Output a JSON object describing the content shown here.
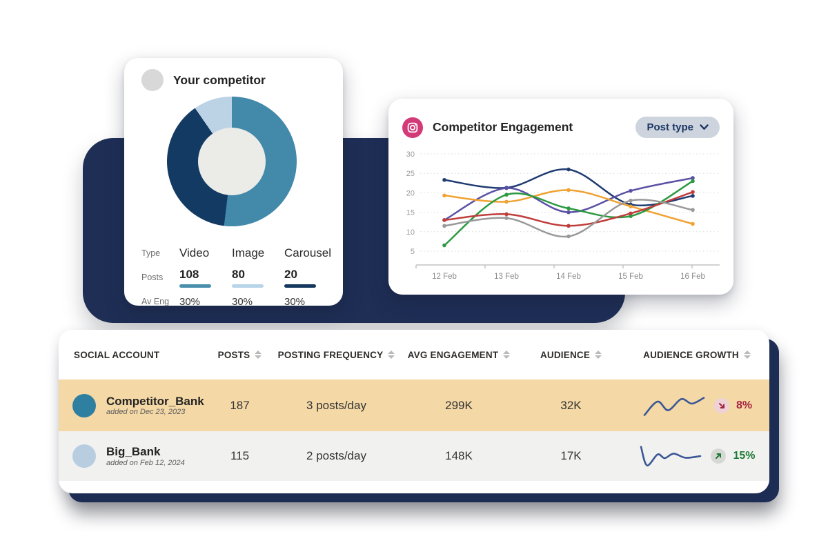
{
  "page": {
    "background": "#ffffff",
    "accent_navy": "#1e2e55"
  },
  "competitor_card": {
    "title": "Your competitor",
    "avatar_color": "#d8d8d8",
    "chart_data": {
      "type": "donut",
      "title": "Your competitor post types",
      "segments": [
        {
          "label": "Video",
          "value": 108,
          "color": "#4289aa"
        },
        {
          "label": "Image",
          "value": 80,
          "color": "#133a62"
        },
        {
          "label": "Carousel",
          "value": 20,
          "color": "#bcd3e6"
        }
      ],
      "hole_color": "#ebebe8"
    },
    "legend": {
      "row_labels": [
        "Type",
        "Posts",
        "Av Eng"
      ],
      "columns": [
        {
          "type": "Video",
          "posts": "108",
          "bar_color": "#4a90ad",
          "avg_eng": "30%"
        },
        {
          "type": "Image",
          "posts": "80",
          "bar_color": "#b8d4e8",
          "avg_eng": "30%"
        },
        {
          "type": "Carousel",
          "posts": "20",
          "bar_color": "#16385e",
          "avg_eng": "30%"
        }
      ]
    }
  },
  "engagement_card": {
    "title": "Competitor Engagement",
    "icon": "instagram-icon",
    "icon_color": "#d23b77",
    "filter_button": {
      "label": "Post type",
      "icon": "chevron-down-icon"
    },
    "chart_data": {
      "type": "line",
      "x_labels": [
        "12 Feb",
        "13 Feb",
        "14 Feb",
        "15 Feb",
        "16 Feb"
      ],
      "y_ticks": [
        5,
        10,
        15,
        20,
        25,
        30
      ],
      "ylim": [
        5,
        30
      ],
      "grid": "dotted-horizontal",
      "legend_position": "none",
      "series": [
        {
          "name": "navy",
          "color": "#1f3b70",
          "values": [
            23.3,
            21.3,
            26,
            17,
            19.2
          ]
        },
        {
          "name": "purple",
          "color": "#5a51a5",
          "values": [
            13,
            21.2,
            15,
            20.5,
            23.8
          ]
        },
        {
          "name": "orange",
          "color": "#f0a232",
          "values": [
            19.3,
            17.7,
            20.7,
            16.5,
            12
          ]
        },
        {
          "name": "green",
          "color": "#2c9a41",
          "values": [
            6.5,
            19.5,
            16,
            14,
            23
          ]
        },
        {
          "name": "red",
          "color": "#bf3d3a",
          "values": [
            13,
            14.5,
            11.5,
            14.7,
            20.2
          ]
        },
        {
          "name": "gray",
          "color": "#999999",
          "values": [
            11.5,
            13.5,
            8.8,
            18,
            15.6
          ]
        }
      ]
    }
  },
  "table": {
    "sparkline_color": "#3a5795",
    "columns": [
      {
        "label": "SOCIAL ACCOUNT",
        "sortable": false
      },
      {
        "label": "POSTS",
        "sortable": true
      },
      {
        "label": "POSTING FREQUENCY",
        "sortable": true
      },
      {
        "label": "AVG ENGAGEMENT",
        "sortable": true
      },
      {
        "label": "AUDIENCE",
        "sortable": true
      },
      {
        "label": "AUDIENCE GROWTH",
        "sortable": true
      }
    ],
    "rows": [
      {
        "name": "Competitor_Bank",
        "added": "added on Dec 23, 2023",
        "avatar_color": "#2f7fa0",
        "posts": "187",
        "frequency": "3 posts/day",
        "avg_engagement": "299K",
        "audience": "32K",
        "growth": "8%",
        "growth_direction": "down",
        "growth_color": "#a42440",
        "badge_bg": "#eed2d8",
        "highlighted": true,
        "row_bg": "#f4d8a6",
        "sparkline": [
          [
            0,
            0.95
          ],
          [
            0.22,
            0.3
          ],
          [
            0.4,
            0.72
          ],
          [
            0.62,
            0.18
          ],
          [
            0.8,
            0.4
          ],
          [
            1,
            0.12
          ]
        ]
      },
      {
        "name": "Big_Bank",
        "added": "added on Feb 12, 2024",
        "avatar_color": "#b9cde1",
        "posts": "115",
        "frequency": "2 posts/day",
        "avg_engagement": "148K",
        "audience": "17K",
        "growth": "15%",
        "growth_direction": "up",
        "growth_color": "#1d7a34",
        "badge_bg": "#d6d8d4",
        "highlighted": false,
        "row_bg": "#f1f1ef",
        "sparkline": [
          [
            0,
            0.05
          ],
          [
            0.1,
            0.95
          ],
          [
            0.28,
            0.42
          ],
          [
            0.4,
            0.6
          ],
          [
            0.55,
            0.38
          ],
          [
            0.75,
            0.58
          ],
          [
            1,
            0.5
          ]
        ]
      }
    ]
  }
}
